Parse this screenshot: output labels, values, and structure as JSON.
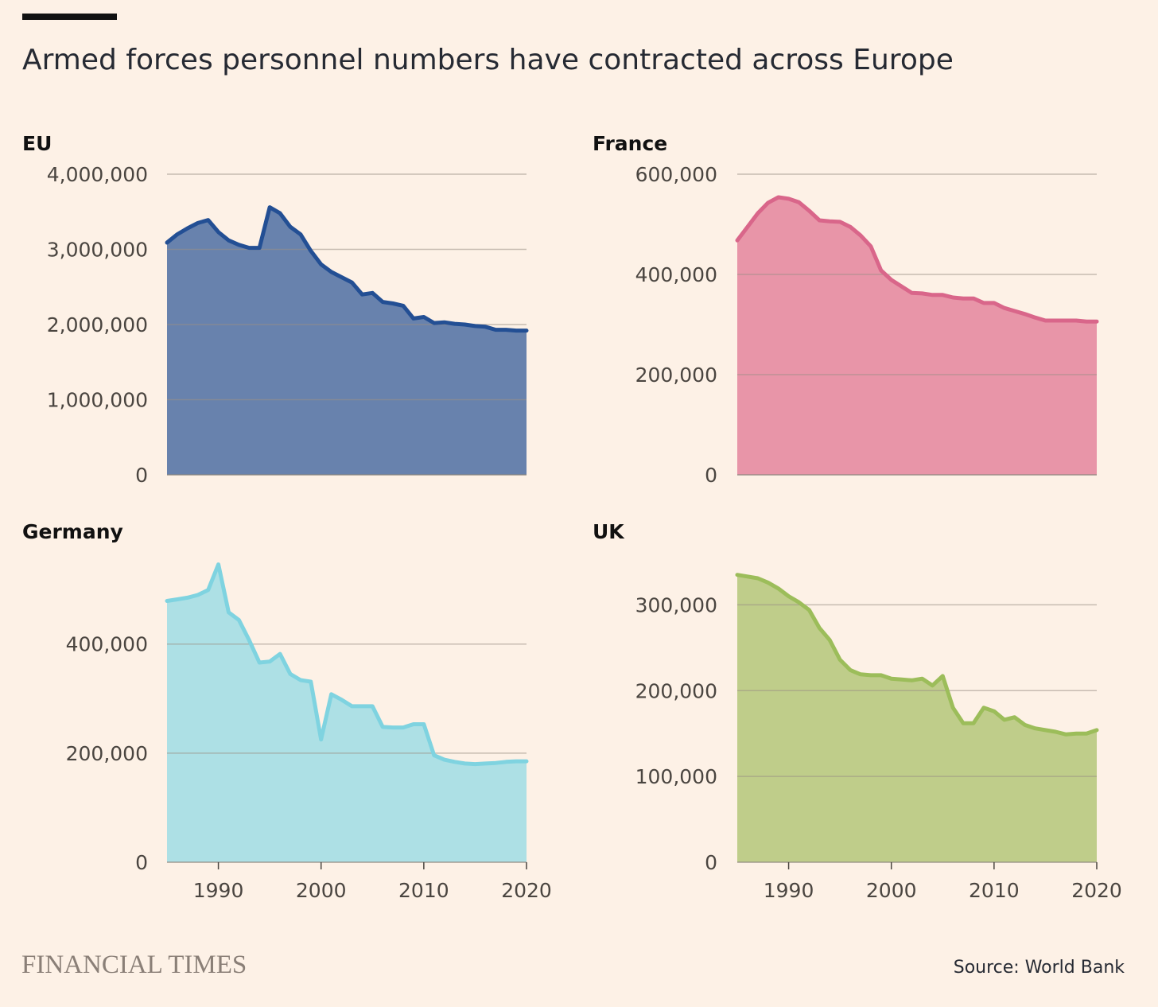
{
  "title": "Armed forces personnel numbers have contracted across Europe",
  "logo": "FINANCIAL TIMES",
  "source": "Source: World Bank",
  "chart_data": [
    {
      "type": "area",
      "title": "EU",
      "x": [
        1985,
        1986,
        1987,
        1988,
        1989,
        1990,
        1991,
        1992,
        1993,
        1994,
        1995,
        1996,
        1997,
        1998,
        1999,
        2000,
        2001,
        2002,
        2003,
        2004,
        2005,
        2006,
        2007,
        2008,
        2009,
        2010,
        2011,
        2012,
        2013,
        2014,
        2015,
        2016,
        2017,
        2018,
        2019,
        2020
      ],
      "values": [
        3090000,
        3200000,
        3280000,
        3350000,
        3390000,
        3230000,
        3120000,
        3060000,
        3020000,
        3020000,
        3560000,
        3480000,
        3300000,
        3200000,
        2980000,
        2800000,
        2700000,
        2630000,
        2560000,
        2400000,
        2420000,
        2300000,
        2280000,
        2250000,
        2080000,
        2100000,
        2020000,
        2030000,
        2010000,
        2000000,
        1980000,
        1970000,
        1930000,
        1930000,
        1920000,
        1920000
      ],
      "yticks": [
        0,
        1000000,
        2000000,
        3000000,
        4000000
      ],
      "ytick_labels": [
        "0",
        "1,000,000",
        "2,000,000",
        "3,000,000",
        "4,000,000"
      ],
      "ylim": [
        0,
        4000000
      ],
      "xlim": [
        1985,
        2020
      ],
      "xticks": [],
      "xtick_labels": [],
      "colors": {
        "fill": "#6882ad",
        "line": "#234f94"
      }
    },
    {
      "type": "area",
      "title": "France",
      "x": [
        1985,
        1986,
        1987,
        1988,
        1989,
        1990,
        1991,
        1992,
        1993,
        1994,
        1995,
        1996,
        1997,
        1998,
        1999,
        2000,
        2001,
        2002,
        2003,
        2004,
        2005,
        2006,
        2007,
        2008,
        2009,
        2010,
        2011,
        2012,
        2013,
        2014,
        2015,
        2016,
        2017,
        2018,
        2019,
        2020
      ],
      "values": [
        468000,
        495000,
        522000,
        543000,
        554000,
        551000,
        544000,
        527000,
        508000,
        506000,
        505000,
        495000,
        478000,
        456000,
        408000,
        389000,
        376000,
        363000,
        362000,
        359000,
        359000,
        354000,
        352000,
        352000,
        343000,
        343000,
        333000,
        327000,
        321000,
        314000,
        308000,
        308000,
        308000,
        308000,
        306000,
        306000
      ],
      "yticks": [
        0,
        200000,
        400000,
        600000
      ],
      "ytick_labels": [
        "0",
        "200,000",
        "400,000",
        "600,000"
      ],
      "ylim": [
        0,
        600000
      ],
      "xlim": [
        1985,
        2020
      ],
      "xticks": [],
      "xtick_labels": [],
      "colors": {
        "fill": "#e895a8",
        "line": "#d9668a"
      }
    },
    {
      "type": "area",
      "title": "Germany",
      "x": [
        1985,
        1986,
        1987,
        1988,
        1989,
        1990,
        1991,
        1992,
        1993,
        1994,
        1995,
        1996,
        1997,
        1998,
        1999,
        2000,
        2001,
        2002,
        2003,
        2004,
        2005,
        2006,
        2007,
        2008,
        2009,
        2010,
        2011,
        2012,
        2013,
        2014,
        2015,
        2016,
        2017,
        2018,
        2019,
        2020
      ],
      "values": [
        479000,
        482000,
        485000,
        490000,
        499000,
        546000,
        458000,
        444000,
        407000,
        366000,
        368000,
        382000,
        345000,
        334000,
        331000,
        225000,
        308000,
        298000,
        286000,
        286000,
        286000,
        248000,
        247000,
        247000,
        253000,
        253000,
        196000,
        188000,
        184000,
        181000,
        180000,
        181000,
        182000,
        184000,
        185000,
        185000
      ],
      "yticks": [
        0,
        200000,
        400000
      ],
      "ytick_labels": [
        "0",
        "200,000",
        "400,000"
      ],
      "ylim": [
        0,
        560000
      ],
      "xlim": [
        1985,
        2020
      ],
      "xticks": [
        1990,
        2000,
        2010,
        2020
      ],
      "xtick_labels": [
        "1990",
        "2000",
        "2010",
        "2020"
      ],
      "colors": {
        "fill": "#ade0e5",
        "line": "#7fd3e0"
      }
    },
    {
      "type": "area",
      "title": "UK",
      "x": [
        1985,
        1986,
        1987,
        1988,
        1989,
        1990,
        1991,
        1992,
        1993,
        1994,
        1995,
        1996,
        1997,
        1998,
        1999,
        2000,
        2001,
        2002,
        2003,
        2004,
        2005,
        2006,
        2007,
        2008,
        2009,
        2010,
        2011,
        2012,
        2013,
        2014,
        2015,
        2016,
        2017,
        2018,
        2019,
        2020
      ],
      "values": [
        335000,
        333000,
        331000,
        326000,
        319000,
        310000,
        303000,
        294000,
        273000,
        259000,
        236000,
        224000,
        219000,
        218000,
        218000,
        214000,
        213000,
        212000,
        214000,
        206000,
        217000,
        180000,
        162000,
        162000,
        180000,
        176000,
        166000,
        169000,
        160000,
        156000,
        154000,
        152000,
        149000,
        150000,
        150000,
        154000
      ],
      "yticks": [
        0,
        100000,
        200000,
        300000
      ],
      "ytick_labels": [
        "0",
        "100,000",
        "200,000",
        "300,000"
      ],
      "ylim": [
        0,
        356000
      ],
      "xlim": [
        1985,
        2020
      ],
      "xticks": [
        1990,
        2000,
        2010,
        2020
      ],
      "xtick_labels": [
        "1990",
        "2000",
        "2010",
        "2020"
      ],
      "colors": {
        "fill": "#bfcd8a",
        "line": "#9cbd5a"
      }
    }
  ]
}
